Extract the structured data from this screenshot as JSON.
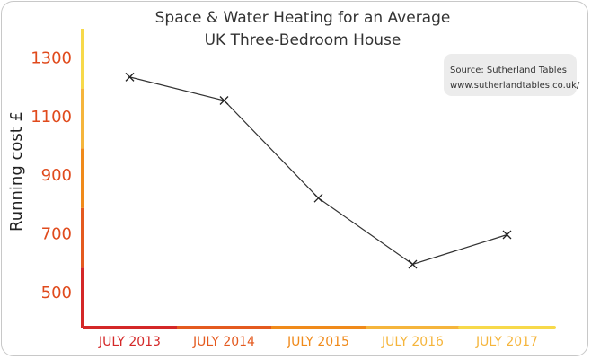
{
  "chart_data": {
    "type": "line",
    "title_lines": [
      "Space & Water Heating for an Average",
      "UK Three-Bedroom House"
    ],
    "xlabel": "",
    "ylabel": "Running cost £",
    "categories": [
      "JULY 2013",
      "JULY 2014",
      "JULY 2015",
      "JULY 2016",
      "JULY 2017"
    ],
    "series": [
      {
        "values": [
          1235,
          1155,
          822,
          596,
          697
        ]
      }
    ],
    "ylim": [
      380,
      1400
    ],
    "yticks": [
      500,
      700,
      900,
      1100,
      1300
    ],
    "grid": false,
    "annotation": {
      "lines": [
        "Source: Sutherland Tables",
        "www.sutherlandtables.co.uk/"
      ],
      "placement": "top-right"
    },
    "colors": {
      "line": "#333333",
      "marker": "#222222",
      "ytick": "#e04a1c",
      "xtick": [
        "#d42828",
        "#e45a1f",
        "#f08a1a",
        "#f5b53c",
        "#f5b53c"
      ],
      "axis_bands": [
        "#d42828",
        "#e45a1f",
        "#f08a1a",
        "#f5b53c",
        "#f7d94a"
      ],
      "source_box": "#ececec"
    }
  }
}
